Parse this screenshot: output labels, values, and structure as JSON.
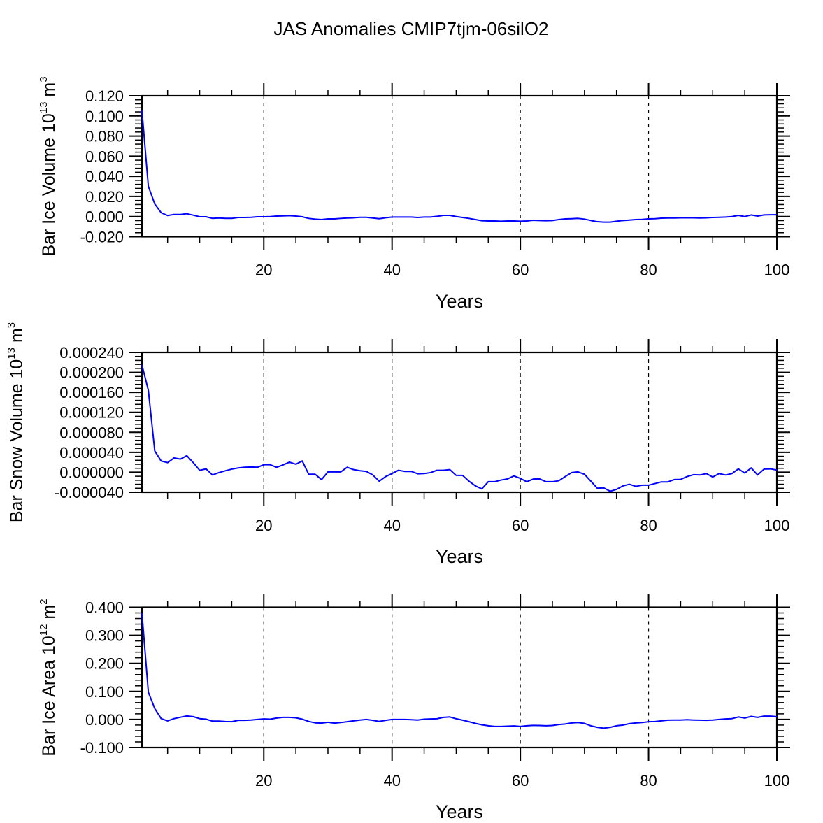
{
  "chart_data": {
    "title": "JAS Anomalies CMIP7tjm-06silO2",
    "type": "line",
    "line_color": "#0000ff",
    "grid_color": "#000000",
    "panels": [
      {
        "type": "line",
        "ylabel_main": "Bar Ice Volume 10",
        "ylabel_exp": "13",
        "ylabel_unit": " m",
        "ylabel_unit_exp": "3",
        "xlabel": "Years",
        "xlim": [
          1,
          100
        ],
        "ylim": [
          -0.02,
          0.12
        ],
        "yticks": [
          -0.02,
          0.0,
          0.02,
          0.04,
          0.06,
          0.08,
          0.1,
          0.12
        ],
        "ytick_labels": [
          "-0.020",
          "0.000",
          "0.020",
          "0.040",
          "0.060",
          "0.080",
          "0.100",
          "0.120"
        ],
        "yminor_step": 0.004,
        "xticks": [
          20,
          40,
          60,
          80,
          100
        ],
        "xtick_labels": [
          "20",
          "40",
          "60",
          "80",
          "100"
        ],
        "xminor_step": 5,
        "vgrid": [
          20,
          40,
          60,
          80
        ],
        "x_start": 1,
        "values": [
          0.1055,
          0.03,
          0.0125,
          0.0038,
          0.001,
          0.0021,
          0.0021,
          0.0028,
          0.0014,
          -0.0002,
          -0.0002,
          -0.0018,
          -0.0014,
          -0.0018,
          -0.0018,
          -0.0009,
          -0.0009,
          -0.0007,
          -0.0002,
          -0.0002,
          0.0,
          0.0005,
          0.0007,
          0.0009,
          0.0005,
          -0.0002,
          -0.0018,
          -0.0025,
          -0.003,
          -0.0023,
          -0.0023,
          -0.0018,
          -0.0014,
          -0.0012,
          -0.0007,
          -0.0007,
          -0.0014,
          -0.0021,
          -0.0012,
          -0.0005,
          -0.0005,
          -0.0005,
          -0.0005,
          -0.0009,
          -0.0005,
          -0.0005,
          0.0002,
          0.0012,
          0.0012,
          0.0,
          -0.0009,
          -0.0018,
          -0.003,
          -0.0041,
          -0.0044,
          -0.0044,
          -0.0046,
          -0.0044,
          -0.0044,
          -0.0046,
          -0.0044,
          -0.0037,
          -0.0039,
          -0.0041,
          -0.0039,
          -0.003,
          -0.0023,
          -0.0021,
          -0.0018,
          -0.0025,
          -0.0039,
          -0.0051,
          -0.0055,
          -0.0055,
          -0.0046,
          -0.0039,
          -0.0035,
          -0.003,
          -0.0028,
          -0.0023,
          -0.0021,
          -0.0016,
          -0.0014,
          -0.0014,
          -0.0012,
          -0.0012,
          -0.0012,
          -0.0014,
          -0.0012,
          -0.0009,
          -0.0007,
          -0.0005,
          0.0,
          0.0012,
          0.0,
          0.0016,
          0.0005,
          0.0016,
          0.0018,
          0.0018
        ]
      },
      {
        "type": "line",
        "ylabel_main": "Bar Snow Volume 10",
        "ylabel_exp": "13",
        "ylabel_unit": " m",
        "ylabel_unit_exp": "3",
        "xlabel": "Years",
        "xlim": [
          1,
          100
        ],
        "ylim": [
          -4e-05,
          0.00024
        ],
        "yticks": [
          -4e-05,
          0.0,
          4e-05,
          8e-05,
          0.00012,
          0.00016,
          0.0002,
          0.00024
        ],
        "ytick_labels": [
          "-0.000040",
          "0.000000",
          "0.000040",
          "0.000080",
          "0.000120",
          "0.000160",
          "0.000200",
          "0.000240"
        ],
        "yminor_step": 8e-06,
        "xticks": [
          20,
          40,
          60,
          80,
          100
        ],
        "xtick_labels": [
          "20",
          "40",
          "60",
          "80",
          "100"
        ],
        "xminor_step": 5,
        "vgrid": [
          20,
          40,
          60,
          80
        ],
        "x_start": 1,
        "values": [
          0.000215,
          0.000164,
          4.27e-05,
          2.26e-05,
          1.93e-05,
          2.87e-05,
          2.63e-05,
          3.33e-05,
          1.93e-05,
          3.9e-06,
          6.7e-06,
          -5.4e-06,
          -7e-07,
          3e-06,
          6.3e-06,
          8.7e-06,
          1e-05,
          1.05e-05,
          1e-05,
          1.51e-05,
          1.51e-05,
          1e-05,
          1.47e-05,
          2.03e-05,
          1.61e-05,
          2.26e-05,
          -4e-06,
          -4e-06,
          -1.47e-05,
          7e-07,
          7e-07,
          7e-07,
          1e-05,
          5.3e-06,
          3e-06,
          1.7e-06,
          -5.4e-06,
          -1.79e-05,
          -8.6e-06,
          -2.6e-06,
          4e-06,
          1.7e-06,
          1.7e-06,
          -3e-06,
          -2.6e-06,
          -7e-07,
          4e-06,
          4e-06,
          5.3e-06,
          -6.3e-06,
          -6.3e-06,
          -1.79e-05,
          -2.73e-05,
          -3.33e-05,
          -1.89e-05,
          -1.89e-05,
          -1.56e-05,
          -1.33e-05,
          -7.3e-06,
          -1.23e-05,
          -1.89e-05,
          -1.36e-05,
          -1.33e-05,
          -1.89e-05,
          -1.89e-05,
          -1.7e-05,
          -8.6e-06,
          -7e-07,
          7e-07,
          -4e-06,
          -1.79e-05,
          -3.19e-05,
          -3.12e-05,
          -3.8e-05,
          -3.43e-05,
          -2.73e-05,
          -2.4e-05,
          -2.82e-05,
          -2.59e-05,
          -2.59e-05,
          -2.26e-05,
          -1.93e-05,
          -1.93e-05,
          -1.47e-05,
          -1.43e-05,
          -8.6e-06,
          -4.9e-06,
          -5.4e-06,
          -2.6e-06,
          -9.6e-06,
          -2.6e-06,
          -5.4e-06,
          -2.6e-06,
          6.8e-06,
          -1.6e-06,
          8.7e-06,
          -5.4e-06,
          6.3e-06,
          6.8e-06,
          4.4e-06
        ]
      },
      {
        "type": "line",
        "ylabel_main": "Bar Ice Area 10",
        "ylabel_exp": "12",
        "ylabel_unit": " m",
        "ylabel_unit_exp": "2",
        "xlabel": "Years",
        "xlim": [
          1,
          100
        ],
        "ylim": [
          -0.1,
          0.4
        ],
        "yticks": [
          -0.1,
          0.0,
          0.1,
          0.2,
          0.3,
          0.4
        ],
        "ytick_labels": [
          "-0.100",
          "0.000",
          "0.100",
          "0.200",
          "0.300",
          "0.400"
        ],
        "yminor_step": 0.02,
        "xticks": [
          20,
          40,
          60,
          80,
          100
        ],
        "xtick_labels": [
          "20",
          "40",
          "60",
          "80",
          "100"
        ],
        "xminor_step": 5,
        "vgrid": [
          20,
          40,
          60,
          80
        ],
        "x_start": 1,
        "values": [
          0.38,
          0.097,
          0.039,
          0.003,
          -0.005,
          0.003,
          0.008,
          0.0125,
          0.01,
          0.003,
          0.001,
          -0.006,
          -0.006,
          -0.0075,
          -0.008,
          -0.003,
          -0.003,
          -0.002,
          0.0,
          0.002,
          0.001,
          0.005,
          0.0075,
          0.0075,
          0.006,
          0.001,
          -0.007,
          -0.012,
          -0.013,
          -0.01,
          -0.013,
          -0.011,
          -0.008,
          -0.005,
          -0.002,
          0.0,
          -0.003,
          -0.007,
          -0.003,
          0.0,
          0.0,
          0.0,
          -0.001,
          -0.002,
          0.001,
          0.002,
          0.0025,
          0.0075,
          0.009,
          0.0025,
          -0.0025,
          -0.008,
          -0.014,
          -0.019,
          -0.0225,
          -0.025,
          -0.025,
          -0.024,
          -0.023,
          -0.025,
          -0.0225,
          -0.021,
          -0.0215,
          -0.0225,
          -0.0215,
          -0.018,
          -0.016,
          -0.0125,
          -0.011,
          -0.014,
          -0.0225,
          -0.028,
          -0.031,
          -0.028,
          -0.0225,
          -0.02,
          -0.015,
          -0.0125,
          -0.011,
          -0.008,
          -0.0075,
          -0.005,
          -0.0025,
          -0.002,
          -0.002,
          -0.001,
          -0.002,
          -0.0025,
          -0.003,
          -0.002,
          0.0,
          0.002,
          0.003,
          0.009,
          0.005,
          0.011,
          0.0075,
          0.012,
          0.012,
          0.01
        ]
      }
    ]
  }
}
